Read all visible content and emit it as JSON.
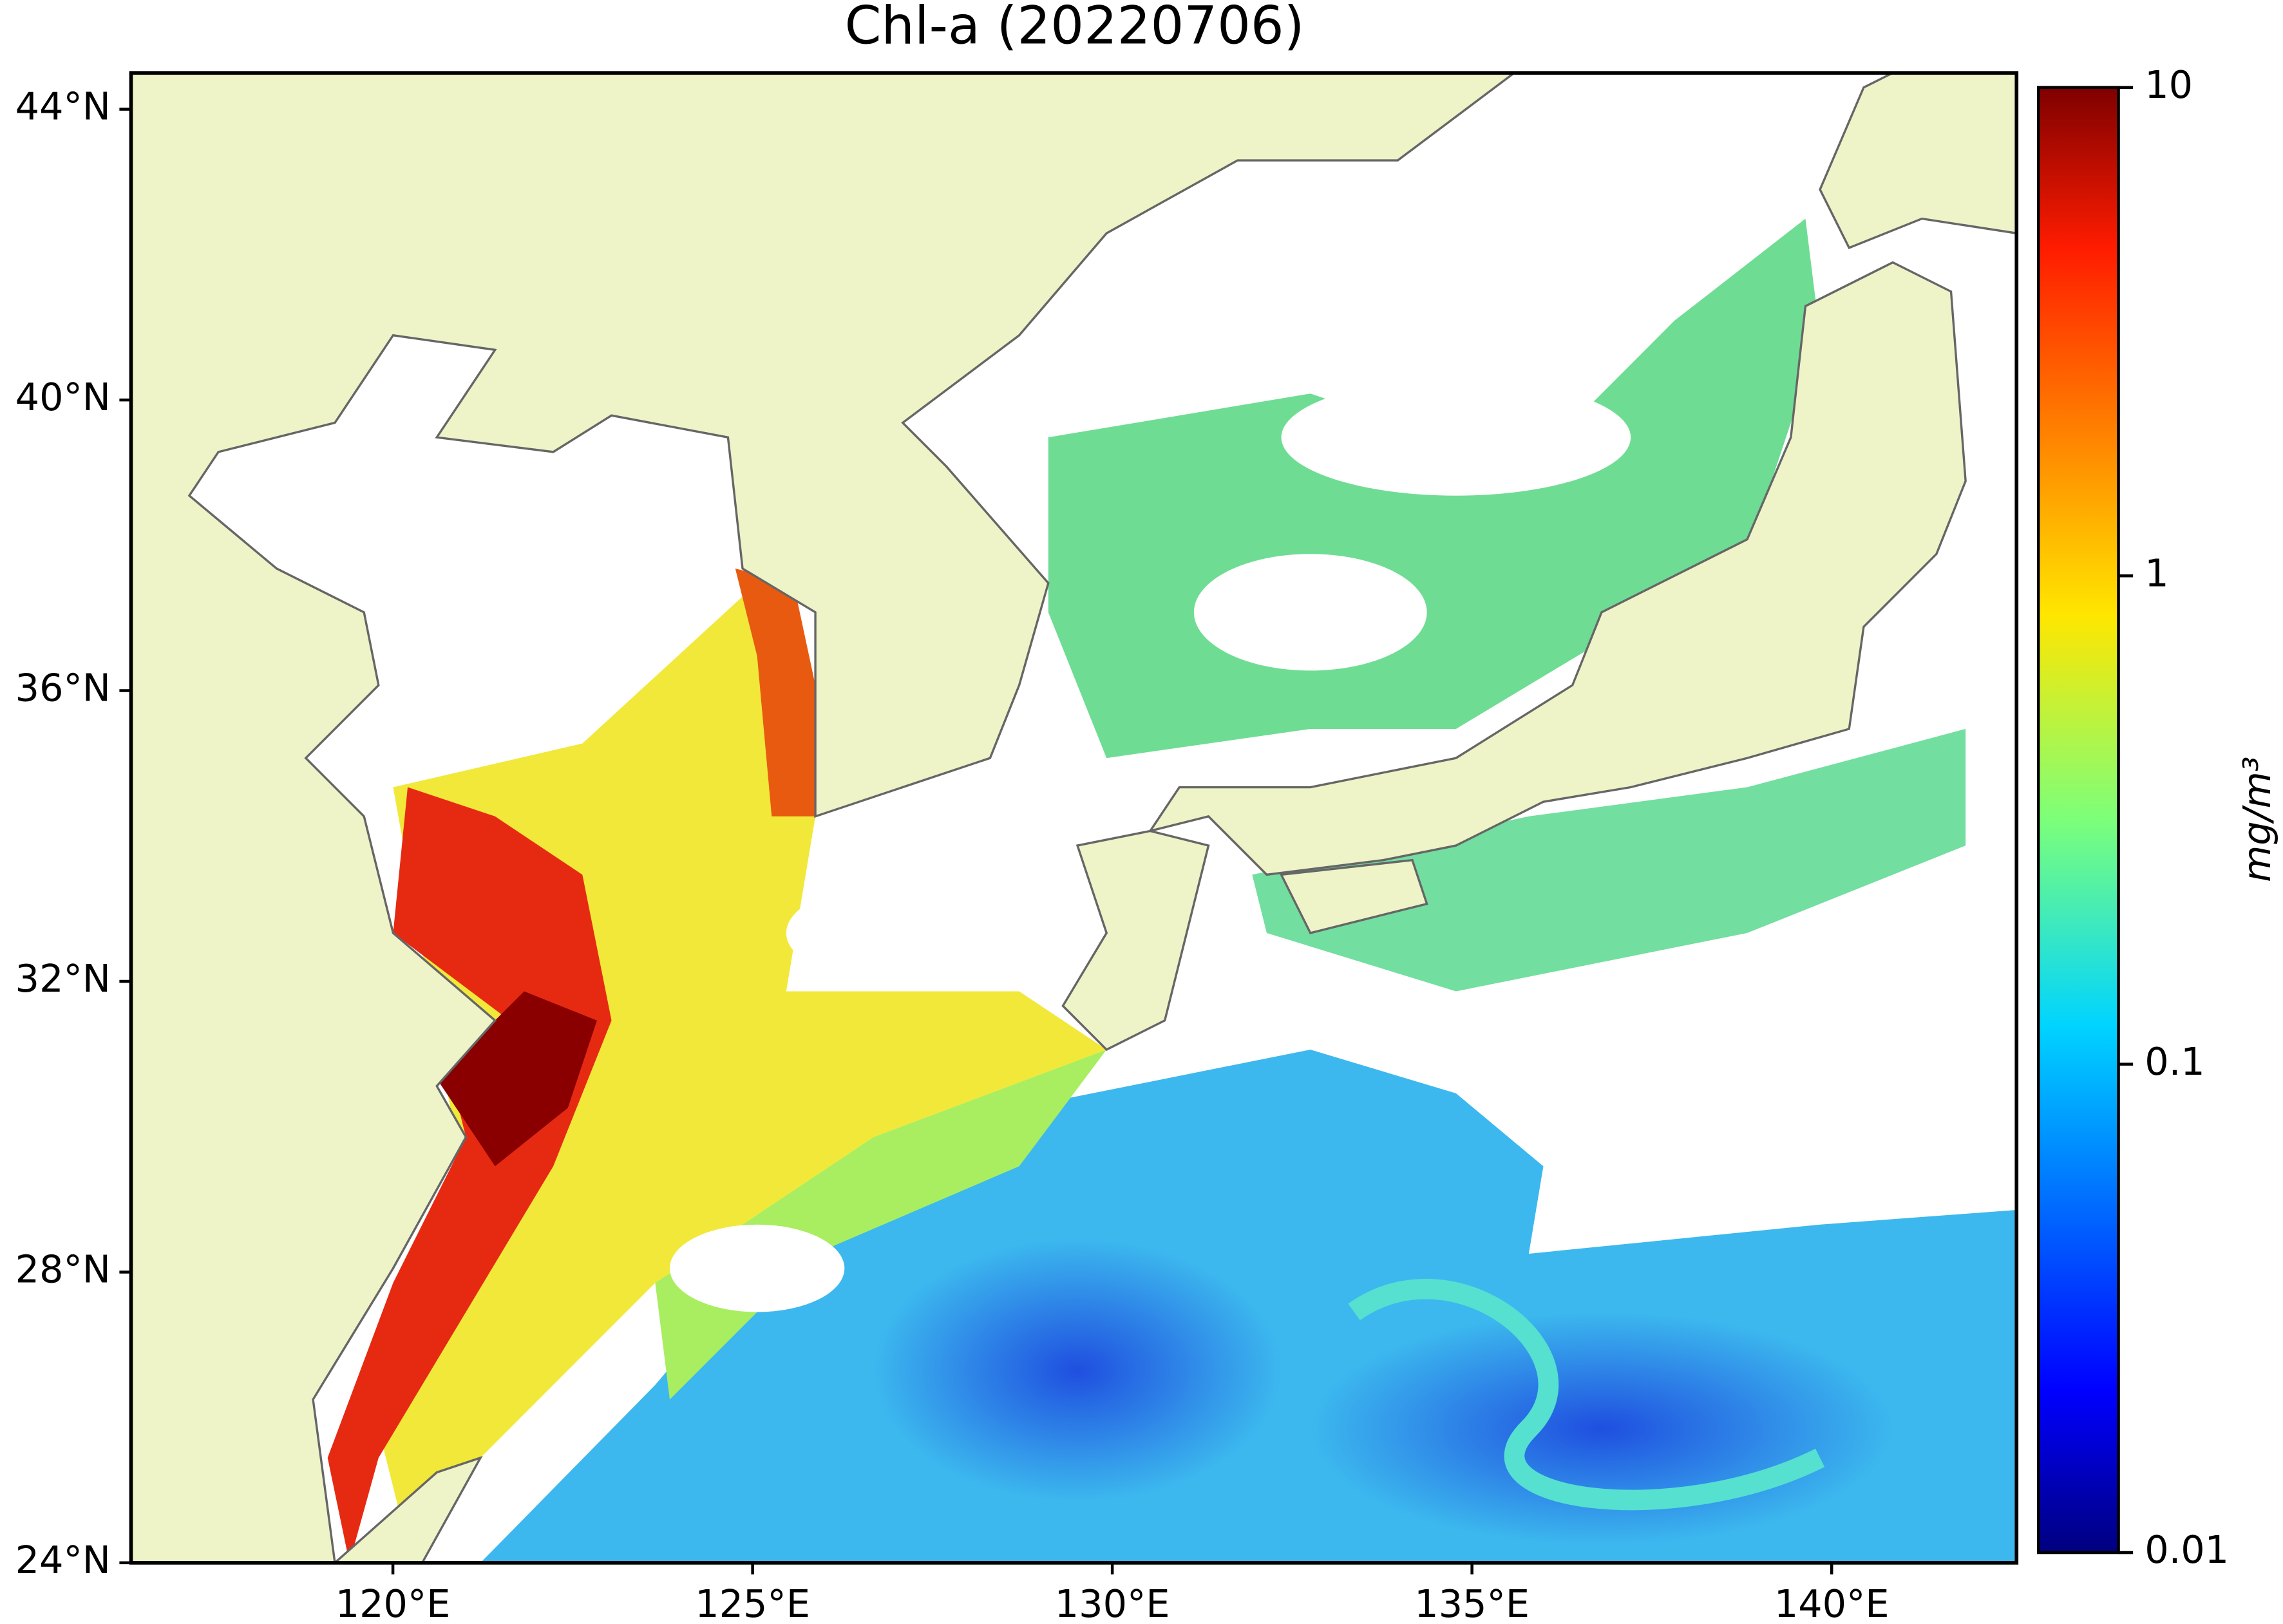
{
  "chart_data": {
    "type": "map",
    "title": "Chl-a (20220706)",
    "xlim": [
      116.36,
      142.57
    ],
    "ylim": [
      24,
      44.5
    ],
    "xticks": [
      {
        "value": 120,
        "label": "120°E"
      },
      {
        "value": 125,
        "label": "125°E"
      },
      {
        "value": 130,
        "label": "130°E"
      },
      {
        "value": 135,
        "label": "135°E"
      },
      {
        "value": 140,
        "label": "140°E"
      }
    ],
    "yticks": [
      {
        "value": 24,
        "label": "24°N"
      },
      {
        "value": 28,
        "label": "28°N"
      },
      {
        "value": 32,
        "label": "32°N"
      },
      {
        "value": 36,
        "label": "36°N"
      },
      {
        "value": 40,
        "label": "40°N"
      },
      {
        "value": 44,
        "label": "44°N"
      }
    ],
    "colorbar": {
      "label": "mg/m³",
      "lim": [
        0.01,
        10
      ],
      "scale": "log",
      "ticks": [
        0.01,
        0.1,
        1,
        10
      ],
      "colormap": "jet"
    }
  }
}
